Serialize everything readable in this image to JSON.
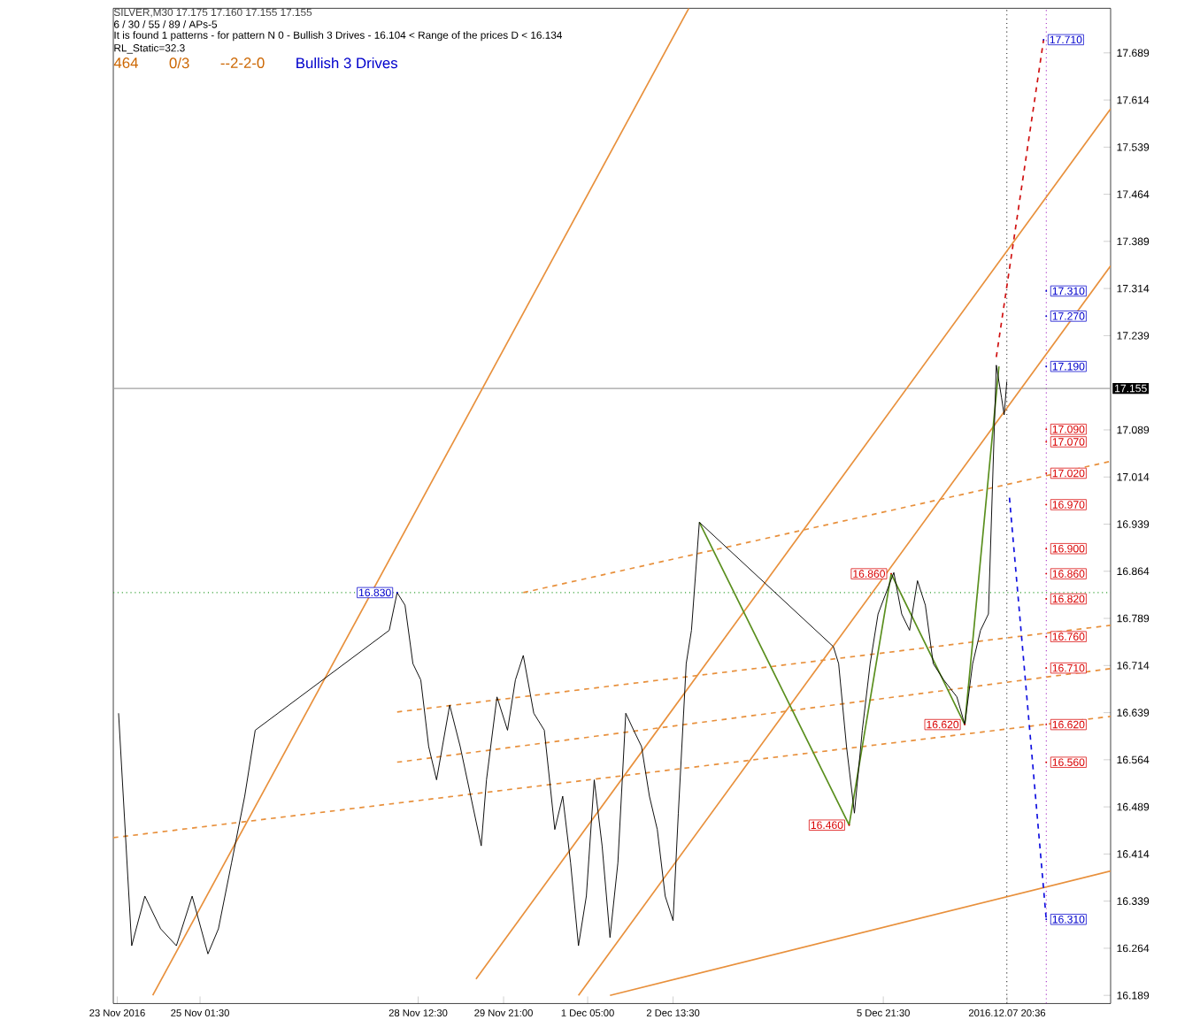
{
  "chart_data": {
    "type": "line",
    "title": "SILVER,M30  17.175 17.160 17.155 17.155",
    "annotations": [
      "6 / 30 / 55 / 89 / APs-5",
      "It is found 1 patterns  -  for pattern N 0 - Bullish 3 Drives - 16.104 < Range of the prices D < 16.134",
      "RL_Static=32.3",
      "464",
      "0/3",
      "--2-2-0",
      "Bullish 3 Drives",
      {
        "text": "17.710",
        "x": "2016-12-08T10:30",
        "y": 17.71
      },
      {
        "text": "17.310",
        "x": "2016-12-08T11:30",
        "y": 17.31
      },
      {
        "text": "17.270",
        "x": "2016-12-08T11:30",
        "y": 17.27
      },
      {
        "text": "17.190",
        "x": "2016-12-08T11:30",
        "y": 17.19
      },
      {
        "text": "17.090",
        "x": "2016-12-08T11:30",
        "y": 17.09
      },
      {
        "text": "17.070",
        "x": "2016-12-08T11:30",
        "y": 17.07
      },
      {
        "text": "17.020",
        "x": "2016-12-08T11:30",
        "y": 17.02
      },
      {
        "text": "16.970",
        "x": "2016-12-08T11:30",
        "y": 16.97
      },
      {
        "text": "16.900",
        "x": "2016-12-08T11:30",
        "y": 16.9
      },
      {
        "text": "16.860",
        "x": "2016-12-08T11:30",
        "y": 16.86
      },
      {
        "text": "16.820",
        "x": "2016-12-08T11:30",
        "y": 16.82
      },
      {
        "text": "16.760",
        "x": "2016-12-08T11:30",
        "y": 16.76
      },
      {
        "text": "16.710",
        "x": "2016-12-08T11:30",
        "y": 16.71
      },
      {
        "text": "16.620",
        "x": "2016-12-08T11:30",
        "y": 16.62
      },
      {
        "text": "16.560",
        "x": "2016-12-08T11:30",
        "y": 16.56
      },
      {
        "text": "16.310",
        "x": "2016-12-08T11:30",
        "y": 16.31
      },
      {
        "text": "16.830",
        "x": "2016-11-28T04:30",
        "y": 16.83
      },
      {
        "text": "16.860",
        "x": "2016-12-06T00:30",
        "y": 16.86
      },
      {
        "text": "16.620",
        "x": "2016-12-07T04:30",
        "y": 16.62
      },
      {
        "text": "16.460",
        "x": "2016-12-05T08:30",
        "y": 16.46
      }
    ],
    "xlim": [
      "2016-11-23T16:30",
      "2016-12-09T12:00"
    ],
    "ylim": [
      16.176,
      17.76
    ],
    "xticks": [
      {
        "value": "2016-11-23T18:00",
        "label": "23 Nov 2016"
      },
      {
        "value": "2016-11-25T01:30",
        "label": "25 Nov 01:30"
      },
      {
        "value": "2016-11-28T12:30",
        "label": "28 Nov 12:30"
      },
      {
        "value": "2016-11-29T21:00",
        "label": "29 Nov 21:00"
      },
      {
        "value": "2016-12-01T05:00",
        "label": "1 Dec 05:00"
      },
      {
        "value": "2016-12-02T13:30",
        "label": "2 Dec 13:30"
      },
      {
        "value": "2016-12-05T21:30",
        "label": "5 Dec 21:30"
      },
      {
        "value": "2016-12-07T20:36",
        "label": "2016.12.07 20:36"
      }
    ],
    "yticks": [
      16.189,
      16.264,
      16.339,
      16.414,
      16.489,
      16.564,
      16.639,
      16.714,
      16.789,
      16.864,
      16.939,
      17.014,
      17.089,
      17.239,
      17.314,
      17.389,
      17.464,
      17.539,
      17.614,
      17.689
    ],
    "marker": "none",
    "ref_lines": [
      {
        "axis": "y",
        "value": 17.155,
        "label": "17.155",
        "color": "#a0a0a0",
        "line_style": "solid"
      },
      {
        "axis": "y",
        "value": 16.83,
        "label": null,
        "color": "#2e9e2e",
        "line_style": "dotted"
      },
      {
        "axis": "x",
        "value": "2016-12-07T20:30",
        "label": null,
        "color": "#303030",
        "line_style": "dotted"
      },
      {
        "axis": "x",
        "value": "2016-12-08T11:30",
        "label": null,
        "color": "#a020c0",
        "line_style": "dotted"
      }
    ],
    "series": [
      {
        "color": "#e8903c",
        "line_style": "solid",
        "x": [
          "2016-12-01T13:30",
          "2016-12-09T12:00"
        ],
        "values": [
          16.189,
          16.387
        ]
      },
      {
        "color": "#e8903c",
        "line_style": "solid",
        "x": [
          "2016-11-24T07:30",
          "2016-12-02T19:30"
        ],
        "values": [
          16.189,
          17.76
        ]
      },
      {
        "color": "#e8903c",
        "line_style": "solid",
        "x": [
          "2016-11-29T10:30",
          "2016-12-09T12:00"
        ],
        "values": [
          16.215,
          17.6
        ]
      },
      {
        "color": "#e8903c",
        "line_style": "solid",
        "x": [
          "2016-12-01T01:30",
          "2016-12-09T12:00"
        ],
        "values": [
          16.189,
          17.35
        ]
      },
      {
        "color": "#e8903c",
        "line_style": "dashed",
        "x": [
          "2016-11-23T16:30",
          "2016-12-09T12:00"
        ],
        "values": [
          16.44,
          16.633
        ]
      },
      {
        "color": "#e8903c",
        "line_style": "dashed",
        "x": [
          "2016-11-28T04:30",
          "2016-12-09T12:00"
        ],
        "values": [
          16.56,
          16.709
        ]
      },
      {
        "color": "#e8903c",
        "line_style": "dashed",
        "x": [
          "2016-11-28T04:30",
          "2016-12-09T12:00"
        ],
        "values": [
          16.64,
          16.778
        ]
      },
      {
        "color": "#e8903c",
        "line_style": "dashed",
        "x": [
          "2016-11-30T04:30",
          "2016-12-09T12:00"
        ],
        "values": [
          16.83,
          17.039
        ]
      },
      {
        "color": "#000000",
        "line_style": "solid",
        "x": [
          "2016-11-23T18:30",
          "2016-11-23T23:30",
          "2016-11-24T04:30",
          "2016-11-24T10:30",
          "2016-11-24T16:30",
          "2016-11-24T22:30",
          "2016-11-25T04:30",
          "2016-11-25T08:30",
          "2016-11-25T13:30",
          "2016-11-25T18:30",
          "2016-11-25T22:30",
          "2016-11-28T01:30",
          "2016-11-28T04:30",
          "2016-11-28T07:30",
          "2016-11-28T10:30",
          "2016-11-28T13:30",
          "2016-11-28T16:30",
          "2016-11-28T19:30",
          "2016-11-29T00:30",
          "2016-11-29T04:30",
          "2016-11-29T08:30",
          "2016-11-29T12:30",
          "2016-11-29T14:30",
          "2016-11-29T18:30",
          "2016-11-29T22:30",
          "2016-11-30T01:30",
          "2016-11-30T04:30",
          "2016-11-30T08:30",
          "2016-11-30T12:30",
          "2016-11-30T16:30",
          "2016-11-30T19:30",
          "2016-11-30T22:30",
          "2016-12-01T01:30",
          "2016-12-01T04:30",
          "2016-12-01T07:30",
          "2016-12-01T10:30",
          "2016-12-01T13:30",
          "2016-12-01T16:30",
          "2016-12-01T19:30",
          "2016-12-01T22:30",
          "2016-12-02T01:30",
          "2016-12-02T04:30",
          "2016-12-02T07:30",
          "2016-12-02T10:30",
          "2016-12-02T13:30",
          "2016-12-02T15:30",
          "2016-12-02T18:30",
          "2016-12-02T20:30",
          "2016-12-02T23:30",
          "2016-12-05T02:30",
          "2016-12-05T04:30",
          "2016-12-05T07:30",
          "2016-12-05T10:30",
          "2016-12-05T13:30",
          "2016-12-05T16:30",
          "2016-12-05T19:30",
          "2016-12-06T01:30",
          "2016-12-06T04:30",
          "2016-12-06T07:30",
          "2016-12-06T10:30",
          "2016-12-06T13:30",
          "2016-12-06T16:30",
          "2016-12-06T20:30",
          "2016-12-07T01:30",
          "2016-12-07T04:30",
          "2016-12-07T07:30",
          "2016-12-07T10:30",
          "2016-12-07T13:30",
          "2016-12-07T16:30",
          "2016-12-07T18:30",
          "2016-12-07T19:30",
          "2016-12-07T20:30"
        ],
        "values": [
          16.638,
          16.268,
          16.347,
          16.295,
          16.268,
          16.347,
          16.255,
          16.295,
          16.4,
          16.506,
          16.611,
          16.77,
          16.83,
          16.81,
          16.717,
          16.691,
          16.585,
          16.532,
          16.651,
          16.585,
          16.506,
          16.427,
          16.532,
          16.664,
          16.611,
          16.691,
          16.73,
          16.638,
          16.611,
          16.453,
          16.506,
          16.4,
          16.268,
          16.347,
          16.532,
          16.427,
          16.281,
          16.4,
          16.638,
          16.611,
          16.585,
          16.506,
          16.453,
          16.347,
          16.308,
          16.479,
          16.717,
          16.77,
          16.942,
          16.744,
          16.717,
          16.585,
          16.479,
          16.611,
          16.717,
          16.796,
          16.862,
          16.796,
          16.77,
          16.849,
          16.81,
          16.717,
          16.691,
          16.664,
          16.62,
          16.717,
          16.77,
          16.796,
          17.192,
          17.14,
          17.113,
          17.166
        ]
      },
      {
        "color": "#5a8f1e",
        "line_style": "solid",
        "x": [
          "2016-12-02T23:30",
          "2016-12-05T08:30",
          "2016-12-06T00:30",
          "2016-12-07T04:30",
          "2016-12-07T17:30"
        ],
        "values": [
          16.942,
          16.46,
          16.86,
          16.62,
          17.19
        ]
      },
      {
        "color": "#d01010",
        "line_style": "dashed",
        "x": [
          "2016-12-07T16:30",
          "2016-12-08T10:30"
        ],
        "values": [
          17.205,
          17.71
        ]
      },
      {
        "color": "#1010e0",
        "line_style": "dashed",
        "x": [
          "2016-12-07T21:30",
          "2016-12-08T11:30"
        ],
        "values": [
          16.981,
          16.31
        ]
      }
    ]
  }
}
